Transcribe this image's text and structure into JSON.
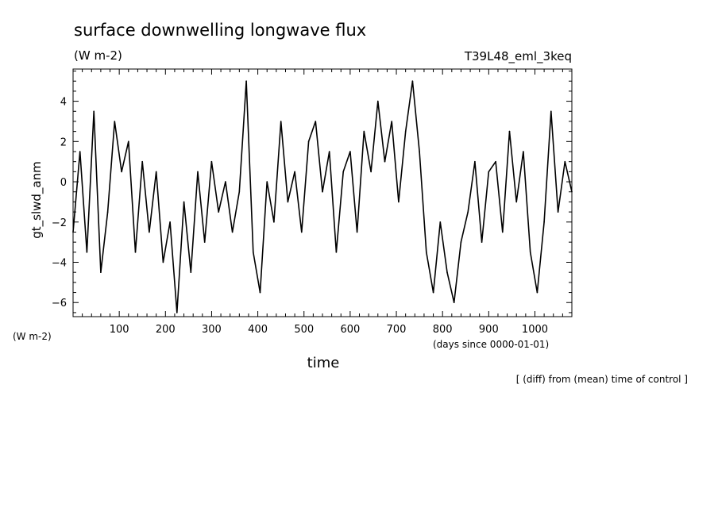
{
  "chart_data": {
    "type": "line",
    "title": "surface downwelling longwave flux",
    "units": "(W m-2)",
    "units_left": "(W m-2)",
    "run_id": "T39L48_eml_3keq",
    "xlabel": "time",
    "xlabel_units": "(days since 0000-01-01)",
    "ylabel": "gt_slwd_anm",
    "note": "[ (diff) from (mean) time of control ]",
    "xlim": [
      0,
      1080
    ],
    "ylim": [
      -6.7,
      5.6
    ],
    "x_ticks": [
      100,
      200,
      300,
      400,
      500,
      600,
      700,
      800,
      900,
      1000
    ],
    "y_ticks": [
      -6,
      -4,
      -2,
      0,
      2,
      4
    ],
    "grid": false,
    "line_color": "#000000",
    "x": [
      0,
      15,
      30,
      45,
      60,
      75,
      90,
      105,
      120,
      135,
      150,
      165,
      180,
      195,
      210,
      225,
      240,
      255,
      270,
      285,
      300,
      315,
      330,
      345,
      360,
      375,
      390,
      405,
      420,
      435,
      450,
      465,
      480,
      495,
      510,
      525,
      540,
      555,
      570,
      585,
      600,
      615,
      630,
      645,
      660,
      675,
      690,
      705,
      720,
      735,
      750,
      765,
      780,
      795,
      810,
      825,
      840,
      855,
      870,
      885,
      900,
      915,
      930,
      945,
      960,
      975,
      990,
      1005,
      1020,
      1035,
      1050,
      1065,
      1080
    ],
    "values": [
      -2.5,
      1.5,
      -3.5,
      3.5,
      -4.5,
      -1.5,
      3.0,
      0.5,
      2.0,
      -3.5,
      1.0,
      -2.5,
      0.5,
      -4.0,
      -2.0,
      -6.5,
      -1.0,
      -4.5,
      0.5,
      -3.0,
      1.0,
      -1.5,
      0.0,
      -2.5,
      -0.5,
      5.0,
      -3.5,
      -5.5,
      0.0,
      -2.0,
      3.0,
      -1.0,
      0.5,
      -2.5,
      2.0,
      3.0,
      -0.5,
      1.5,
      -3.5,
      0.5,
      1.5,
      -2.5,
      2.5,
      0.5,
      4.0,
      1.0,
      3.0,
      -1.0,
      2.5,
      5.0,
      1.5,
      -3.5,
      -5.5,
      -2.0,
      -4.5,
      -6.0,
      -3.0,
      -1.5,
      1.0,
      -3.0,
      0.5,
      1.0,
      -2.5,
      2.5,
      -1.0,
      1.5,
      -3.5,
      -5.5,
      -2.0,
      3.5,
      -1.5,
      1.0,
      -0.5
    ]
  }
}
